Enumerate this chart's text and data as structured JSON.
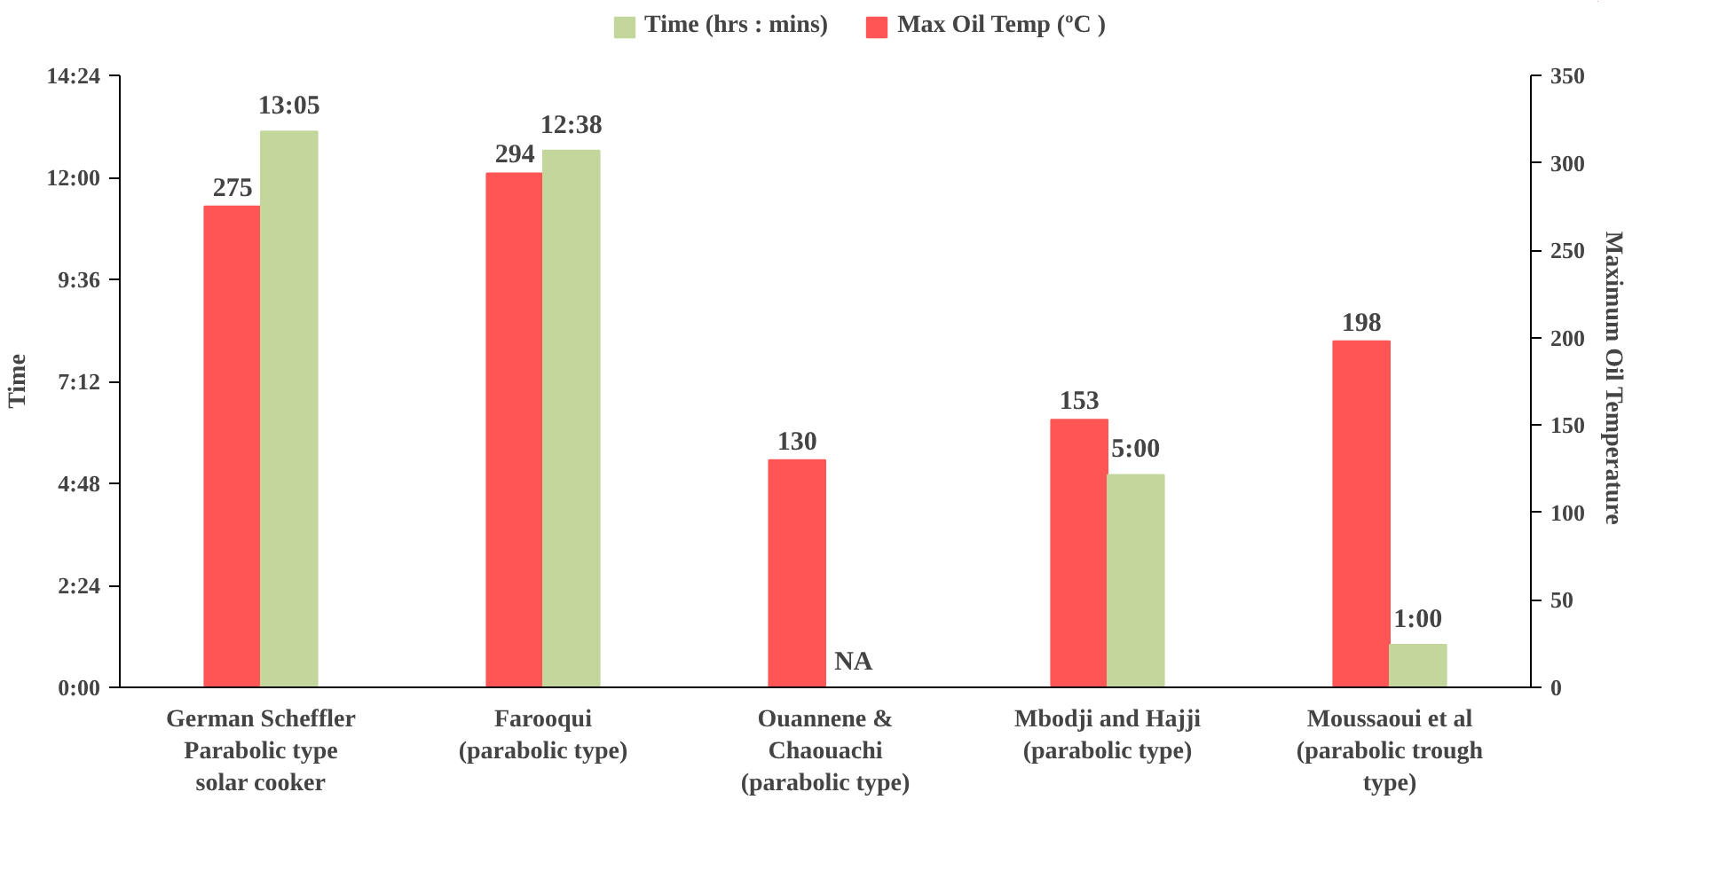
{
  "chart_data": {
    "type": "bar",
    "ylabel": "Time",
    "y2label": "Maximum  Oil Temperature",
    "categories": [
      "German Scheffler\nParabolic type\nsolar cooker",
      "Farooqui\n(parabolic type)",
      "Ouannene &\nChaouachi\n(parabolic type)",
      "Mbodji and Hajji\n(parabolic type)",
      "Moussaoui et al\n(parabolic trough\ntype)"
    ],
    "series": [
      {
        "name": "Max Oil Temp (ºC )",
        "color": "#ff5555",
        "axis": "y2",
        "values": [
          275,
          294,
          130,
          153,
          198
        ],
        "value_labels": [
          "275",
          "294",
          "130",
          "153",
          "198"
        ]
      },
      {
        "name": "Time (hrs : mins)",
        "color": "#c3d69b",
        "values": [
          13.08,
          12.63,
          null,
          5,
          1
        ],
        "value_labels": [
          "13:05",
          "12:38",
          "NA",
          "5:00",
          "1:00"
        ]
      }
    ],
    "ylim": [
      0,
      14.4
    ],
    "yticks": [
      {
        "value": 0,
        "label": "0:00"
      },
      {
        "value": 2.4,
        "label": "2:24"
      },
      {
        "value": 4.8,
        "label": "4:48"
      },
      {
        "value": 7.2,
        "label": "7:12"
      },
      {
        "value": 9.6,
        "label": "9:36"
      },
      {
        "value": 12,
        "label": "12:00"
      },
      {
        "value": 14.4,
        "label": "14:24"
      }
    ],
    "y2lim": [
      0,
      350
    ],
    "y2ticks": [
      0,
      50,
      100,
      150,
      200,
      250,
      300,
      350
    ],
    "legend": "top",
    "grid": false
  }
}
